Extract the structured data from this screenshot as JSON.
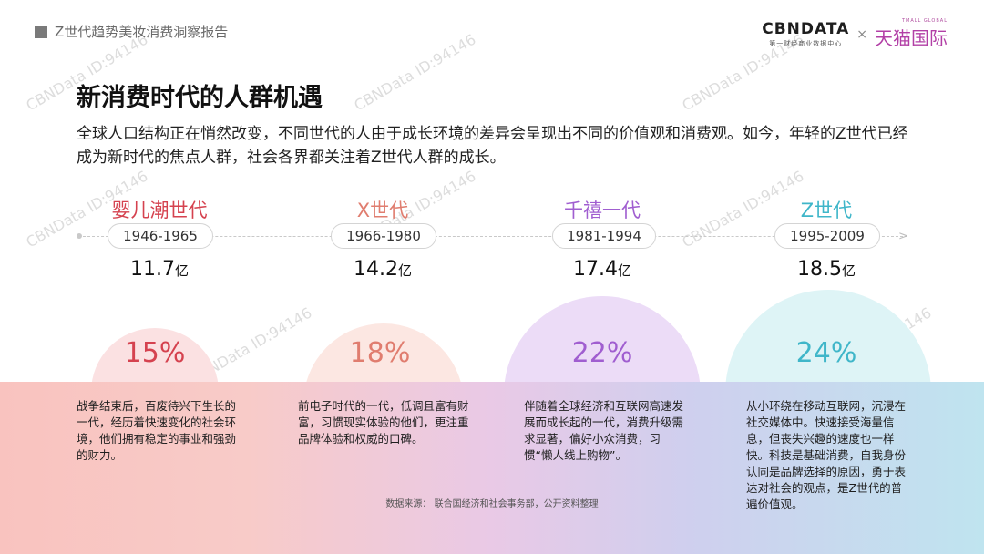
{
  "header": {
    "report_title": "Z世代趋势美妆消费洞察报告",
    "brand_cbn": "CBNDATA",
    "brand_cbn_sub": "第一财经商业数据中心",
    "brand_separator": "×",
    "brand_tmall_small": "TMALL GLOBAL",
    "brand_tmall": "天猫国际"
  },
  "title": "新消费时代的人群机遇",
  "intro": "全球人口结构正在悄然改变，不同世代的人由于成长环境的差异会呈现出不同的价值观和消费观。如今，年轻的Z世代已经成为新时代的焦点人群，社会各界都关注着Z世代人群的成长。",
  "generations": [
    {
      "name": "婴儿潮世代",
      "years": "1946-1965",
      "population": "11.7",
      "unit": "亿",
      "percent": "15%",
      "color": "#d5424f",
      "desc": "战争结束后，百废待兴下生长的一代，经历着快速变化的社会环境，他们拥有稳定的事业和强劲的财力。"
    },
    {
      "name": "X世代",
      "years": "1966-1980",
      "population": "14.2",
      "unit": "亿",
      "percent": "18%",
      "color": "#e07d6f",
      "desc": "前电子时代的一代，低调且富有财富，习惯现实体验的他们，更注重品牌体验和权威的口碑。"
    },
    {
      "name": "千禧一代",
      "years": "1981-1994",
      "population": "17.4",
      "unit": "亿",
      "percent": "22%",
      "color": "#a05ed0",
      "desc": "伴随着全球经济和互联网高速发展而成长起的一代，消费升级需求显著，偏好小众消费，习惯“懒人线上购物”。"
    },
    {
      "name": "Z世代",
      "years": "1995-2009",
      "population": "18.5",
      "unit": "亿",
      "percent": "24%",
      "color": "#3fb6c9",
      "desc": "从小环绕在移动互联网，沉浸在社交媒体中。快速接受海量信息，但丧失兴趣的速度也一样快。科技是基础消费，自我身份认同是品牌选择的原因，勇于表达对社会的观点，是Z世代的普遍价值观。"
    }
  ],
  "source": "数据来源：  联合国经济和社会事务部，公开资料整理",
  "watermark": "CBNData ID:94146"
}
